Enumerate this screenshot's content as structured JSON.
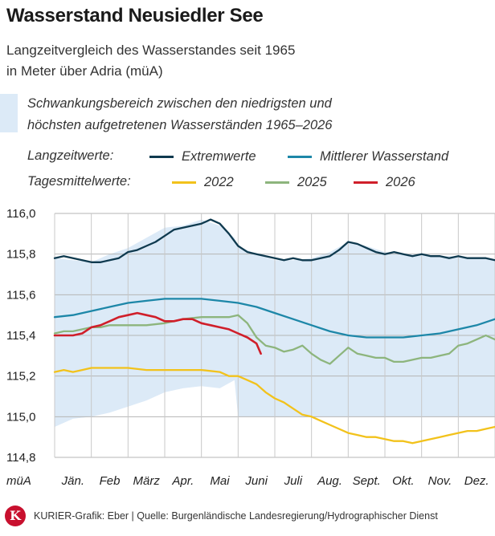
{
  "header": {
    "title": "Wasserstand Neusiedler See",
    "subtitle_line1": "Langzeitvergleich des Wasserstandes seit 1965",
    "subtitle_line2": "in Meter über Adria (müA)"
  },
  "legend": {
    "range_line1": "Schwankungsbereich zwischen den niedrigsten und",
    "range_line2": "höchsten aufgetretenen Wasserständen 1965–2026",
    "group_longterm": "Langzeitwerte:",
    "group_daily": "Tagesmittelwerte:",
    "extreme": "Extremwerte",
    "mean": "Mittlerer Wasserstand",
    "y2022": "2022",
    "y2025": "2025",
    "y2026": "2026"
  },
  "footer": {
    "logo": "K",
    "credit": "KURIER-Grafik: Eber | Quelle: Burgenländische Landesregierung/Hydrographischer Dienst"
  },
  "colors": {
    "range_fill": "#dceaf7",
    "extreme": "#0f3a4f",
    "mean": "#1d87a8",
    "y2022": "#f2c21b",
    "y2025": "#8db57d",
    "y2026": "#d01f2a"
  },
  "chart_data": {
    "type": "line",
    "unit_label": "müA",
    "ylim": [
      114.8,
      116.0
    ],
    "xlim": [
      0,
      12
    ],
    "yticks": [
      114.8,
      115.0,
      115.2,
      115.4,
      115.6,
      115.8,
      116.0
    ],
    "ytick_labels": [
      "114,8",
      "115,0",
      "115,2",
      "115,4",
      "115,6",
      "115,8",
      "116,0"
    ],
    "months": [
      "Jän.",
      "Feb",
      "März",
      "Apr.",
      "Mai",
      "Juni",
      "Juli",
      "Aug.",
      "Sept.",
      "Okt.",
      "Nov.",
      "Dez."
    ],
    "grid": true,
    "range_band": {
      "x": [
        0.0,
        0.5,
        1.0,
        1.5,
        2.0,
        2.5,
        3.0,
        3.5,
        4.0,
        4.5,
        4.9,
        5.0,
        5.5,
        6.0,
        6.5,
        7.0,
        7.5,
        8.0,
        8.5,
        9.0,
        9.5,
        10.0,
        10.5,
        11.0,
        11.5,
        12.0
      ],
      "low": [
        114.95,
        114.99,
        115.0,
        115.02,
        115.05,
        115.08,
        115.12,
        115.14,
        115.15,
        115.14,
        115.18,
        115.0,
        115.0,
        115.0,
        115.0,
        115.0,
        115.0,
        115.0,
        115.0,
        115.0,
        115.0,
        115.0,
        115.0,
        115.0,
        115.0,
        115.0
      ],
      "high": [
        115.78,
        115.77,
        115.76,
        115.8,
        115.83,
        115.88,
        115.93,
        115.94,
        115.97,
        115.94,
        115.88,
        115.84,
        115.8,
        115.77,
        115.77,
        115.78,
        115.81,
        115.86,
        115.84,
        115.81,
        115.8,
        115.8,
        115.79,
        115.79,
        115.78,
        115.77
      ]
    },
    "series": [
      {
        "name": "Extremwerte",
        "x": [
          0.0,
          0.25,
          0.5,
          0.75,
          1.0,
          1.25,
          1.5,
          1.75,
          2.0,
          2.25,
          2.5,
          2.75,
          3.0,
          3.25,
          3.5,
          3.75,
          4.0,
          4.25,
          4.5,
          4.75,
          5.0,
          5.25,
          5.5,
          5.75,
          6.0,
          6.25,
          6.5,
          6.75,
          7.0,
          7.25,
          7.5,
          7.75,
          8.0,
          8.25,
          8.5,
          8.75,
          9.0,
          9.25,
          9.5,
          9.75,
          10.0,
          10.25,
          10.5,
          10.75,
          11.0,
          11.25,
          11.5,
          11.75,
          12.0
        ],
        "values": [
          115.78,
          115.79,
          115.78,
          115.77,
          115.76,
          115.76,
          115.77,
          115.78,
          115.81,
          115.82,
          115.84,
          115.86,
          115.89,
          115.92,
          115.93,
          115.94,
          115.95,
          115.97,
          115.95,
          115.9,
          115.84,
          115.81,
          115.8,
          115.79,
          115.78,
          115.77,
          115.78,
          115.77,
          115.77,
          115.78,
          115.79,
          115.82,
          115.86,
          115.85,
          115.83,
          115.81,
          115.8,
          115.81,
          115.8,
          115.79,
          115.8,
          115.79,
          115.79,
          115.78,
          115.79,
          115.78,
          115.78,
          115.78,
          115.77
        ]
      },
      {
        "name": "Mittlerer Wasserstand",
        "x": [
          0.0,
          0.5,
          1.0,
          1.5,
          2.0,
          2.5,
          3.0,
          3.5,
          4.0,
          4.5,
          5.0,
          5.5,
          6.0,
          6.5,
          7.0,
          7.5,
          8.0,
          8.5,
          9.0,
          9.5,
          10.0,
          10.5,
          11.0,
          11.5,
          12.0
        ],
        "values": [
          115.49,
          115.5,
          115.52,
          115.54,
          115.56,
          115.57,
          115.58,
          115.58,
          115.58,
          115.57,
          115.56,
          115.54,
          115.51,
          115.48,
          115.45,
          115.42,
          115.4,
          115.39,
          115.39,
          115.39,
          115.4,
          115.41,
          115.43,
          115.45,
          115.48
        ]
      },
      {
        "name": "2022",
        "x": [
          0.0,
          0.25,
          0.5,
          0.75,
          1.0,
          1.5,
          2.0,
          2.5,
          3.0,
          3.5,
          4.0,
          4.5,
          4.75,
          5.0,
          5.25,
          5.5,
          5.75,
          6.0,
          6.25,
          6.5,
          6.75,
          7.0,
          7.25,
          7.5,
          7.75,
          8.0,
          8.25,
          8.5,
          8.75,
          9.0,
          9.25,
          9.5,
          9.75,
          10.0,
          10.25,
          10.5,
          10.75,
          11.0,
          11.25,
          11.5,
          11.75,
          12.0
        ],
        "values": [
          115.22,
          115.23,
          115.22,
          115.23,
          115.24,
          115.24,
          115.24,
          115.23,
          115.23,
          115.23,
          115.23,
          115.22,
          115.2,
          115.2,
          115.18,
          115.16,
          115.12,
          115.09,
          115.07,
          115.04,
          115.01,
          115.0,
          114.98,
          114.96,
          114.94,
          114.92,
          114.91,
          114.9,
          114.9,
          114.89,
          114.88,
          114.88,
          114.87,
          114.88,
          114.89,
          114.9,
          114.91,
          114.92,
          114.93,
          114.93,
          114.94,
          114.95
        ]
      },
      {
        "name": "2025",
        "x": [
          0.0,
          0.25,
          0.5,
          0.75,
          1.0,
          1.25,
          1.5,
          2.0,
          2.5,
          3.0,
          3.5,
          4.0,
          4.5,
          4.75,
          5.0,
          5.25,
          5.5,
          5.75,
          6.0,
          6.25,
          6.5,
          6.75,
          7.0,
          7.25,
          7.5,
          7.75,
          8.0,
          8.25,
          8.5,
          8.75,
          9.0,
          9.25,
          9.5,
          9.75,
          10.0,
          10.25,
          10.5,
          10.75,
          11.0,
          11.25,
          11.5,
          11.75,
          12.0
        ],
        "values": [
          115.41,
          115.42,
          115.42,
          115.43,
          115.44,
          115.44,
          115.45,
          115.45,
          115.45,
          115.46,
          115.48,
          115.49,
          115.49,
          115.49,
          115.5,
          115.46,
          115.39,
          115.35,
          115.34,
          115.32,
          115.33,
          115.35,
          115.31,
          115.28,
          115.26,
          115.3,
          115.34,
          115.31,
          115.3,
          115.29,
          115.29,
          115.27,
          115.27,
          115.28,
          115.29,
          115.29,
          115.3,
          115.31,
          115.35,
          115.36,
          115.38,
          115.4,
          115.38
        ]
      },
      {
        "name": "2026",
        "x": [
          0.0,
          0.25,
          0.5,
          0.75,
          1.0,
          1.25,
          1.5,
          1.75,
          2.0,
          2.25,
          2.5,
          2.75,
          3.0,
          3.25,
          3.5,
          3.75,
          4.0,
          4.25,
          4.5,
          4.75,
          5.0,
          5.25,
          5.5,
          5.62
        ],
        "values": [
          115.4,
          115.4,
          115.4,
          115.41,
          115.44,
          115.45,
          115.47,
          115.49,
          115.5,
          115.51,
          115.5,
          115.49,
          115.47,
          115.47,
          115.48,
          115.48,
          115.46,
          115.45,
          115.44,
          115.43,
          115.41,
          115.39,
          115.36,
          115.31
        ]
      }
    ]
  }
}
